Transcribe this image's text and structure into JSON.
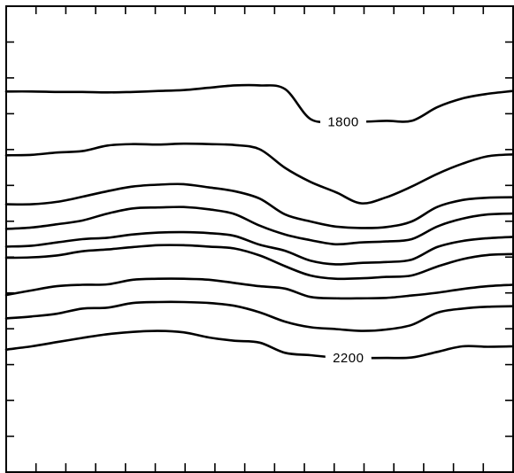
{
  "chart_data": {
    "type": "line",
    "title": "",
    "xlabel": "",
    "ylabel": "",
    "xlim": [
      0,
      100
    ],
    "ylim": [
      0,
      100
    ],
    "x": [
      0,
      5,
      10,
      15,
      20,
      25,
      30,
      35,
      40,
      45,
      50,
      55,
      60,
      65,
      70,
      75,
      80,
      85,
      90,
      95,
      100
    ],
    "contour_labels": [
      {
        "text": "1800",
        "x": 66.5,
        "y": 75.2
      },
      {
        "text": "2200",
        "x": 67.5,
        "y": 24.5
      }
    ],
    "series": [
      {
        "y": [
          81.7,
          81.7,
          81.6,
          81.6,
          81.5,
          81.6,
          81.8,
          82.0,
          82.5,
          83.0,
          83.0,
          82.2,
          75.8,
          75.3,
          75.2,
          75.4,
          75.4,
          78.3,
          80.2,
          81.2,
          81.8
        ]
      },
      {
        "y": [
          68.0,
          68.1,
          68.6,
          68.9,
          70.1,
          70.4,
          70.3,
          70.5,
          70.4,
          70.2,
          69.3,
          65.3,
          62.3,
          60.1,
          57.7,
          59.0,
          61.3,
          64.0,
          66.2,
          67.8,
          68.2
        ]
      },
      {
        "y": [
          57.5,
          57.5,
          58.0,
          59.1,
          60.3,
          61.3,
          61.7,
          61.8,
          61.1,
          60.3,
          58.7,
          55.3,
          53.8,
          52.7,
          52.4,
          52.6,
          53.8,
          56.9,
          58.4,
          58.9,
          59.0
        ]
      },
      {
        "y": [
          52.2,
          52.5,
          53.2,
          54.0,
          55.5,
          56.6,
          56.8,
          56.9,
          56.4,
          55.4,
          52.9,
          51.0,
          49.8,
          48.9,
          49.3,
          49.5,
          50.0,
          52.7,
          54.4,
          55.3,
          55.5
        ]
      },
      {
        "y": [
          48.4,
          48.6,
          49.3,
          50.0,
          50.3,
          51.0,
          51.4,
          51.5,
          51.3,
          50.7,
          48.8,
          47.5,
          45.4,
          44.6,
          44.9,
          45.1,
          45.6,
          48.3,
          49.6,
          50.2,
          50.5
        ]
      },
      {
        "y": [
          46.0,
          46.1,
          46.5,
          47.4,
          47.8,
          48.3,
          48.7,
          48.7,
          48.4,
          48.0,
          46.5,
          44.2,
          42.2,
          41.5,
          41.6,
          41.9,
          42.2,
          44.1,
          45.7,
          46.6,
          46.8
        ]
      },
      {
        "y": [
          38.0,
          39.0,
          39.9,
          40.2,
          40.3,
          41.3,
          41.5,
          41.5,
          41.3,
          40.6,
          39.9,
          39.4,
          37.6,
          37.3,
          37.3,
          37.4,
          37.9,
          38.5,
          39.3,
          39.9,
          40.2
        ]
      },
      {
        "y": [
          33.0,
          33.4,
          34.0,
          35.1,
          35.3,
          36.3,
          36.5,
          36.5,
          36.3,
          35.7,
          34.3,
          32.3,
          31.1,
          30.7,
          30.3,
          30.6,
          31.6,
          34.2,
          35.1,
          35.5,
          35.6
        ]
      },
      {
        "y": [
          26.3,
          27.0,
          27.9,
          28.8,
          29.6,
          30.1,
          30.3,
          30.0,
          28.9,
          28.2,
          27.8,
          25.6,
          25.1,
          24.6,
          24.5,
          24.5,
          24.6,
          25.8,
          27.0,
          26.9,
          27.0
        ]
      }
    ],
    "grid": false,
    "legend": "none"
  }
}
